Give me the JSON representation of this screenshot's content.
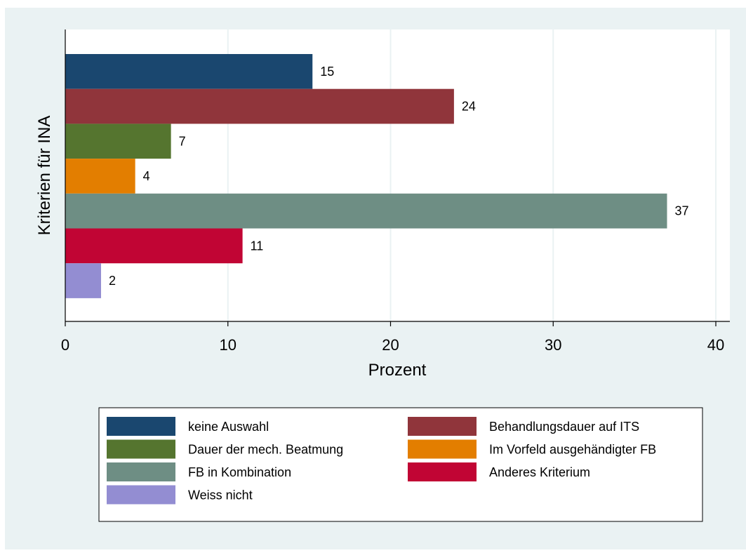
{
  "chart_data": {
    "type": "bar",
    "orientation": "horizontal",
    "title": "",
    "xlabel": "Prozent",
    "ylabel": "Kriterien für INA",
    "xlim": [
      0,
      40
    ],
    "xticks": [
      0,
      10,
      20,
      30,
      40
    ],
    "xtick_labels": [
      "0",
      "10",
      "20",
      "30",
      "40"
    ],
    "grid": "vertical",
    "legend_position": "bottom",
    "series": [
      {
        "name": "keine Auswahl",
        "value": 15.2,
        "label": "15",
        "color": "#1a476f"
      },
      {
        "name": "Behandlungsdauer auf ITS",
        "value": 23.9,
        "label": "24",
        "color": "#90353b"
      },
      {
        "name": "Dauer der mech. Beatmung",
        "value": 6.5,
        "label": "7",
        "color": "#55752f"
      },
      {
        "name": "Im Vorfeld ausgehändigter FB",
        "value": 4.3,
        "label": "4",
        "color": "#e37e00"
      },
      {
        "name": "FB in Kombination",
        "value": 37.0,
        "label": "37",
        "color": "#6e8e84"
      },
      {
        "name": "Anderes Kriterium",
        "value": 10.9,
        "label": "11",
        "color": "#c10534"
      },
      {
        "name": "Weiss nicht",
        "value": 2.2,
        "label": "2",
        "color": "#938dd2"
      }
    ]
  },
  "colors": {
    "outer_background": "#eaf2f3",
    "plot_background": "#ffffff",
    "grid": "#eaf2f3",
    "axis": "#000000"
  }
}
